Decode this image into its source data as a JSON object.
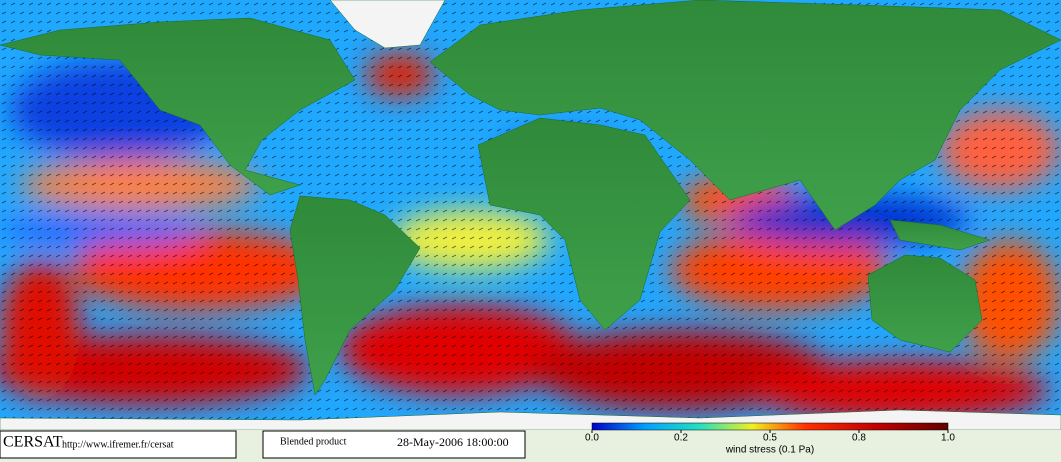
{
  "footer": {
    "logo": "CERSAT",
    "url": "http://www.ifremer.fr/cersat",
    "product": "Blended product",
    "date": "28-May-2006 18:00:00"
  },
  "colorbar": {
    "label": "wind stress (0.1 Pa)",
    "ticks": [
      {
        "value": 0,
        "label": "0.0"
      },
      0.2,
      0.5,
      0.8,
      {
        "value": 1,
        "label": "1.0"
      }
    ]
  }
}
